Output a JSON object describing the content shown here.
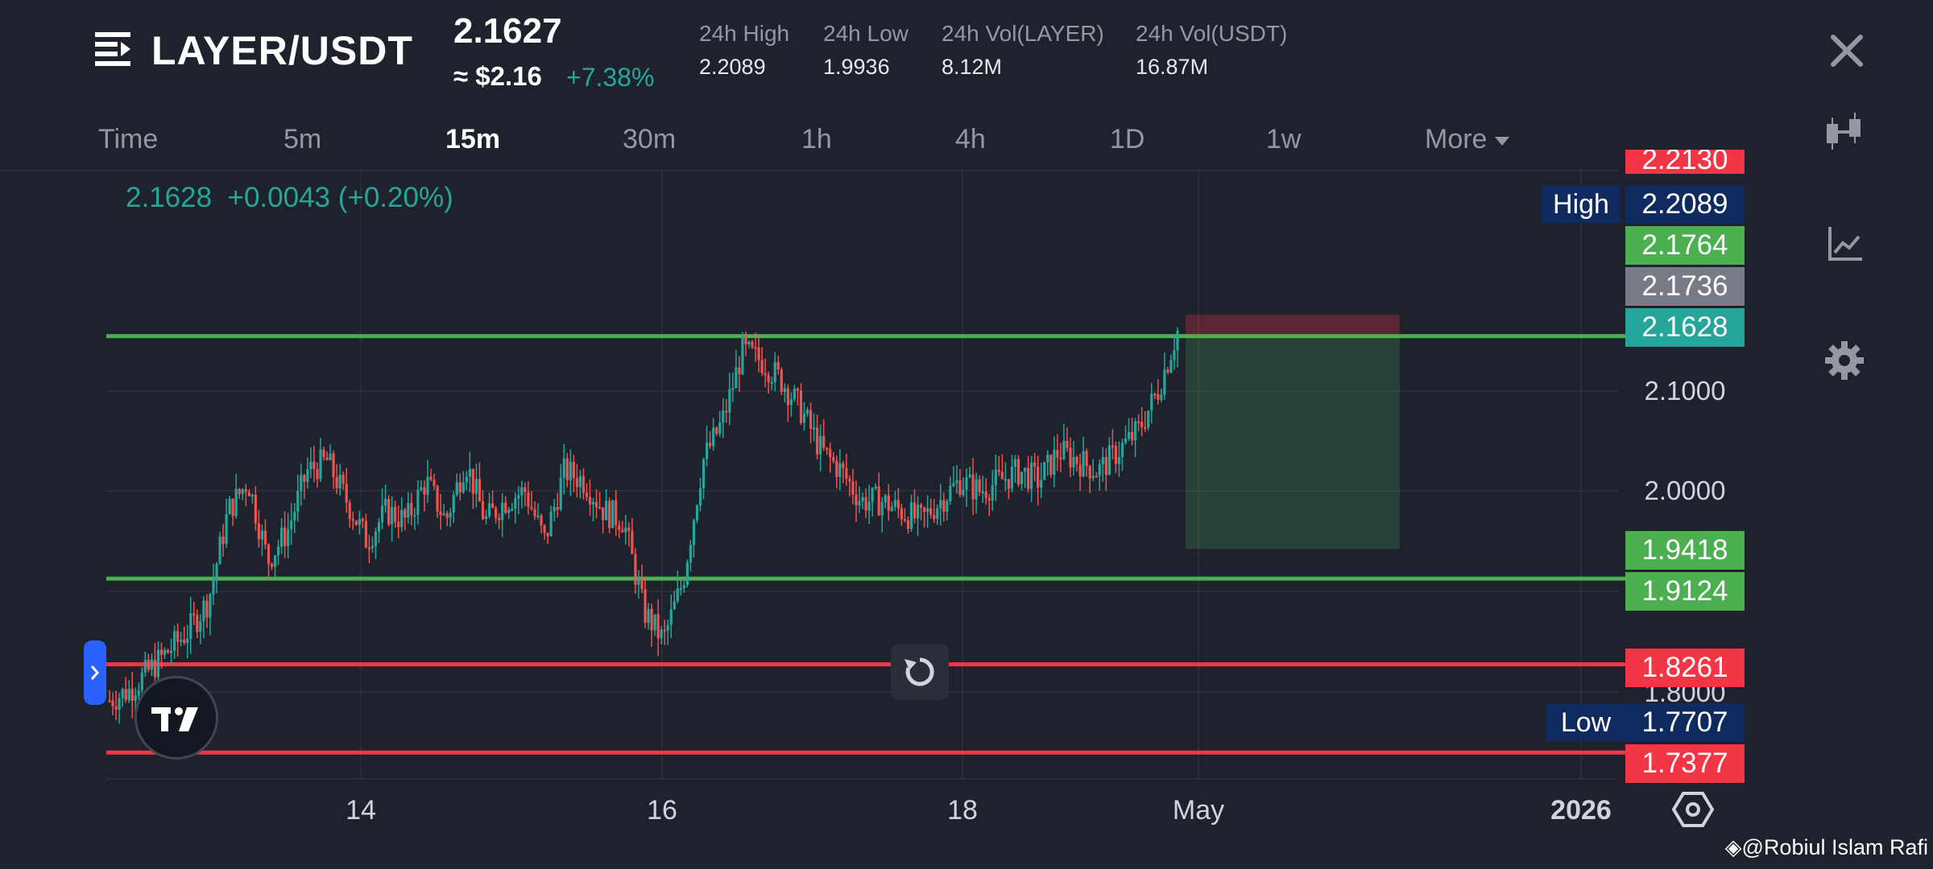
{
  "header": {
    "pair": "LAYER/USDT",
    "last_price": "2.1627",
    "usd_price": "≈ $2.16",
    "change_pct": "+7.38%",
    "stats": [
      {
        "label": "24h High",
        "value": "2.2089"
      },
      {
        "label": "24h Low",
        "value": "1.9936"
      },
      {
        "label": "24h Vol(LAYER)",
        "value": "8.12M"
      },
      {
        "label": "24h Vol(USDT)",
        "value": "16.87M"
      }
    ]
  },
  "timeframes": [
    "Time",
    "5m",
    "15m",
    "30m",
    "1h",
    "4h",
    "1D",
    "1w",
    "More"
  ],
  "active_timeframe": "15m",
  "legend": {
    "price": "2.1628",
    "change": "+0.0043 (+0.20%)"
  },
  "price_tags": {
    "top_partial": "2.2130",
    "high_label": "High",
    "high": "2.2089",
    "green_1": "2.1764",
    "grey": "2.1736",
    "last": "2.1628",
    "green_2": "1.9418",
    "green_3": "1.9124",
    "red_1": "1.8261",
    "low_label": "Low",
    "low": "1.7707",
    "red_2": "1.7377"
  },
  "price_axis_ticks": [
    "2.1000",
    "2.0000",
    "1.8000"
  ],
  "time_axis_ticks": [
    "14",
    "16",
    "18",
    "May",
    "2026"
  ],
  "watermark": "@Robiul Islam Rafi",
  "colors": {
    "background": "#1e222d",
    "up": "#26a69a",
    "down": "#ef5350",
    "support_line": "#4caf50",
    "resistance_line": "#f23645",
    "tag_green": "#4caf50",
    "tag_red": "#f23645",
    "tag_grey": "#787b86",
    "tag_navy": "#0e2a5e"
  },
  "icons": [
    "menu-icon",
    "close-icon",
    "candles-icon",
    "indicators-icon",
    "settings-icon",
    "reset-icon",
    "tradingview-logo",
    "hexagon-settings-icon",
    "binance-icon"
  ],
  "chart_data": {
    "type": "candlestick",
    "price_range": [
      1.7377,
      2.213
    ],
    "y_ticks": [
      2.1,
      2.0,
      1.8
    ],
    "x_ticks": [
      "14",
      "16",
      "18",
      "May",
      "2026"
    ],
    "horizontal_lines": [
      {
        "price": 2.155,
        "color": "green"
      },
      {
        "price": 1.912,
        "color": "green"
      },
      {
        "price": 1.8261,
        "color": "red"
      },
      {
        "price": 1.7377,
        "color": "red"
      }
    ],
    "position_box": {
      "entry": 2.155,
      "stop": 2.1764,
      "target": 1.9418
    },
    "close_path": [
      1.79,
      1.8,
      1.82,
      1.84,
      1.86,
      1.89,
      1.98,
      2.01,
      1.93,
      1.96,
      2.02,
      2.03,
      1.99,
      1.95,
      1.98,
      1.97,
      2.01,
      1.97,
      2.03,
      1.97,
      1.99,
      2.0,
      1.95,
      2.02,
      2.01,
      1.98,
      1.97,
      1.88,
      1.85,
      1.91,
      2.03,
      2.07,
      2.14,
      2.13,
      2.11,
      2.08,
      2.04,
      2.02,
      1.99,
      1.99,
      1.98,
      1.97,
      1.99,
      2.01,
      2.0,
      2.01,
      2.02,
      2.01,
      2.04,
      2.03,
      2.02,
      2.04,
      2.06,
      2.1,
      2.16
    ]
  }
}
